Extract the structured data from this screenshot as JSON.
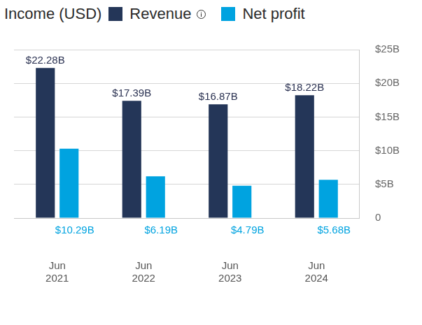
{
  "chart_data": {
    "type": "bar",
    "title": "Income (USD)",
    "categories": [
      "Jun 2021",
      "Jun 2022",
      "Jun 2023",
      "Jun 2024"
    ],
    "series": [
      {
        "name": "Revenue",
        "color": "#243658",
        "values": [
          22.28,
          17.39,
          16.87,
          18.22
        ],
        "value_labels": [
          "$22.28B",
          "$17.39B",
          "$16.87B",
          "$18.22B"
        ]
      },
      {
        "name": "Net profit",
        "color": "#00a3e0",
        "values": [
          10.29,
          6.19,
          4.79,
          5.68
        ],
        "value_labels": [
          "$10.29B",
          "$6.19B",
          "$4.79B",
          "$5.68B"
        ]
      }
    ],
    "ylim": [
      0,
      25
    ],
    "yticks": [
      0,
      {
        "value": 5,
        "label": "$5B"
      },
      {
        "value": 10,
        "label": "$10B"
      },
      {
        "value": 15,
        "label": "$15B"
      },
      {
        "value": 20,
        "label": "$20B"
      },
      {
        "value": 25,
        "label": "$25B"
      }
    ],
    "grid": true,
    "data_labels": true,
    "legend": "top"
  }
}
